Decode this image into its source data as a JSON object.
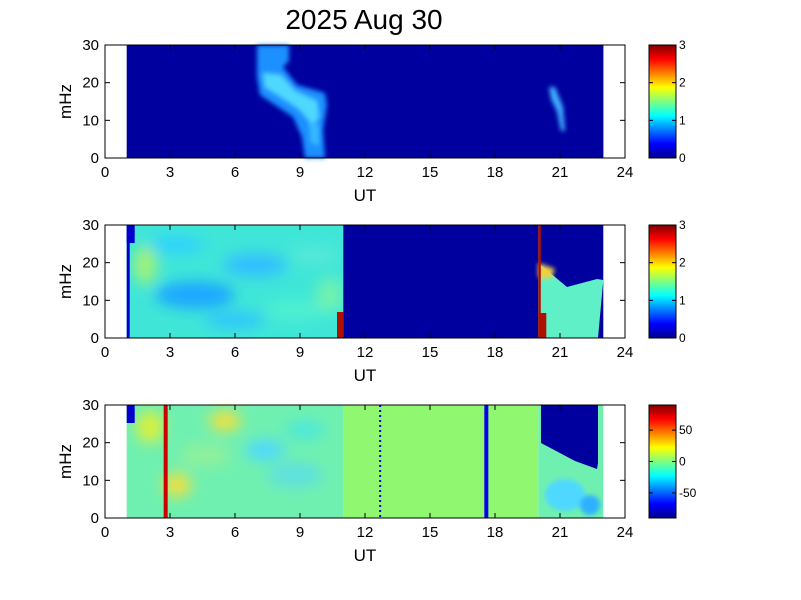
{
  "figure": {
    "title": "2025 Aug 30"
  },
  "chart_data": [
    {
      "type": "heatmap",
      "xlabel": "UT",
      "ylabel": "mHz",
      "xlim": [
        0,
        24
      ],
      "ylim": [
        0,
        30
      ],
      "xticks": [
        0,
        3,
        6,
        9,
        12,
        15,
        18,
        21,
        24
      ],
      "yticks": [
        0,
        10,
        20,
        30
      ],
      "data_x_range": [
        1,
        23
      ],
      "colorbar": {
        "min": 0,
        "max": 3,
        "ticks": [
          0,
          1,
          2,
          3
        ]
      },
      "background_value": 0.15,
      "features": [
        {
          "kind": "ridge",
          "description_points": [
            [
              7.2,
              30
            ],
            [
              7.4,
              22
            ],
            [
              8.2,
              19
            ],
            [
              9.0,
              16
            ],
            [
              9.6,
              12
            ],
            [
              10.0,
              6
            ],
            [
              10.1,
              0
            ]
          ],
          "value": 1.0
        },
        {
          "kind": "ridge",
          "description_points": [
            [
              20.4,
              18
            ],
            [
              20.7,
              12
            ],
            [
              20.9,
              6
            ],
            [
              21.0,
              2
            ]
          ],
          "value": 0.9
        }
      ]
    },
    {
      "type": "heatmap",
      "xlabel": "UT",
      "ylabel": "mHz",
      "xlim": [
        0,
        24
      ],
      "ylim": [
        0,
        30
      ],
      "xticks": [
        0,
        3,
        6,
        9,
        12,
        15,
        18,
        21,
        24
      ],
      "yticks": [
        0,
        10,
        20,
        30
      ],
      "data_x_range": [
        1,
        23
      ],
      "colorbar": {
        "min": 0,
        "max": 3,
        "ticks": [
          0,
          1,
          2,
          3
        ]
      },
      "regions": [
        {
          "x": [
            1.0,
            11.0
          ],
          "value": 1.35,
          "note": "mottled"
        },
        {
          "x": [
            11.0,
            20.0
          ],
          "value": 0.1
        },
        {
          "x": [
            20.0,
            23.0
          ],
          "value": 1.6,
          "upper_boundary": [
            [
              20.0,
              19
            ],
            [
              21.3,
              14
            ],
            [
              22.7,
              16
            ],
            [
              23.0,
              5
            ]
          ]
        }
      ],
      "spikes": [
        {
          "x": 10.8,
          "value": 3.0,
          "y_top": 8
        },
        {
          "x": 20.1,
          "value": 3.0,
          "y_top": 30
        }
      ]
    },
    {
      "type": "heatmap",
      "xlabel": "UT",
      "ylabel": "mHz",
      "xlim": [
        0,
        24
      ],
      "ylim": [
        0,
        30
      ],
      "xticks": [
        0,
        3,
        6,
        9,
        12,
        15,
        18,
        21,
        24
      ],
      "yticks": [
        0,
        10,
        20,
        30
      ],
      "data_x_range": [
        1,
        23
      ],
      "colorbar": {
        "min": -90,
        "max": 90,
        "ticks": [
          50,
          0,
          -50
        ]
      },
      "regions": [
        {
          "x": [
            1.0,
            11.0
          ],
          "value": 5,
          "note": "mottled"
        },
        {
          "x": [
            11.0,
            20.0
          ],
          "value": 30
        },
        {
          "x": [
            20.0,
            23.0
          ],
          "value": 10,
          "upper_boundary": [
            [
              20.0,
              20
            ],
            [
              22.7,
              13
            ],
            [
              23.0,
              30
            ]
          ]
        }
      ],
      "lines": [
        {
          "x": 2.8,
          "value": 90
        },
        {
          "x": 12.7,
          "value": -90,
          "dotted": true
        },
        {
          "x": 17.6,
          "value": -90
        }
      ]
    }
  ]
}
